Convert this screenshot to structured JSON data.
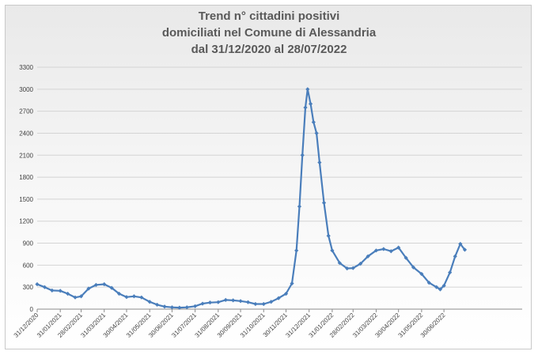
{
  "chart_data": {
    "type": "line",
    "title_lines": [
      "Trend n° cittadini positivi",
      "domiciliati nel Comune di Alessandria",
      "dal 31/12/2020 al 28/07/2022"
    ],
    "xlabel": "",
    "ylabel": "",
    "ylim": [
      0,
      3300
    ],
    "y_ticks": [
      0,
      300,
      600,
      900,
      1200,
      1500,
      1800,
      2100,
      2400,
      2700,
      3000,
      3300
    ],
    "x_tick_labels": [
      "31/12/2020",
      "31/01/2021",
      "28/02/2021",
      "31/03/2021",
      "30/04/2021",
      "31/05/2021",
      "30/06/2021",
      "31/07/2021",
      "31/08/2021",
      "30/09/2021",
      "31/10/2021",
      "30/11/2021",
      "31/12/2021",
      "31/01/2022",
      "28/02/2022",
      "31/03/2022",
      "30/04/2022",
      "31/05/2022",
      "30/06/2022"
    ],
    "grid": "horizontal",
    "legend": "none",
    "line_color": "#4a7ebb",
    "x_unit": "date (dd/mm/yyyy)",
    "series": [
      {
        "points": [
          [
            "31/12/2020",
            340
          ],
          [
            "10/01/2021",
            300
          ],
          [
            "20/01/2021",
            255
          ],
          [
            "31/01/2021",
            250
          ],
          [
            "10/02/2021",
            210
          ],
          [
            "20/02/2021",
            160
          ],
          [
            "28/02/2021",
            175
          ],
          [
            "10/03/2021",
            280
          ],
          [
            "20/03/2021",
            330
          ],
          [
            "31/03/2021",
            340
          ],
          [
            "10/04/2021",
            290
          ],
          [
            "20/04/2021",
            210
          ],
          [
            "30/04/2021",
            165
          ],
          [
            "10/05/2021",
            175
          ],
          [
            "20/05/2021",
            160
          ],
          [
            "31/05/2021",
            100
          ],
          [
            "10/06/2021",
            60
          ],
          [
            "20/06/2021",
            35
          ],
          [
            "30/06/2021",
            25
          ],
          [
            "10/07/2021",
            20
          ],
          [
            "20/07/2021",
            25
          ],
          [
            "31/07/2021",
            40
          ],
          [
            "10/08/2021",
            75
          ],
          [
            "20/08/2021",
            90
          ],
          [
            "31/08/2021",
            95
          ],
          [
            "10/09/2021",
            125
          ],
          [
            "20/09/2021",
            120
          ],
          [
            "30/09/2021",
            110
          ],
          [
            "10/10/2021",
            95
          ],
          [
            "20/10/2021",
            70
          ],
          [
            "31/10/2021",
            70
          ],
          [
            "10/11/2021",
            100
          ],
          [
            "20/11/2021",
            150
          ],
          [
            "30/11/2021",
            210
          ],
          [
            "08/12/2021",
            350
          ],
          [
            "14/12/2021",
            800
          ],
          [
            "18/12/2021",
            1400
          ],
          [
            "22/12/2021",
            2100
          ],
          [
            "26/12/2021",
            2750
          ],
          [
            "29/12/2021",
            3000
          ],
          [
            "02/01/2022",
            2800
          ],
          [
            "06/01/2022",
            2550
          ],
          [
            "10/01/2022",
            2400
          ],
          [
            "14/01/2022",
            2000
          ],
          [
            "20/01/2022",
            1450
          ],
          [
            "26/01/2022",
            1000
          ],
          [
            "31/01/2022",
            800
          ],
          [
            "10/02/2022",
            630
          ],
          [
            "20/02/2022",
            555
          ],
          [
            "28/02/2022",
            560
          ],
          [
            "10/03/2022",
            620
          ],
          [
            "20/03/2022",
            720
          ],
          [
            "31/03/2022",
            800
          ],
          [
            "10/04/2022",
            820
          ],
          [
            "20/04/2022",
            790
          ],
          [
            "30/04/2022",
            840
          ],
          [
            "10/05/2022",
            700
          ],
          [
            "20/05/2022",
            570
          ],
          [
            "31/05/2022",
            480
          ],
          [
            "10/06/2022",
            360
          ],
          [
            "20/06/2022",
            300
          ],
          [
            "25/06/2022",
            270
          ],
          [
            "30/06/2022",
            320
          ],
          [
            "08/07/2022",
            500
          ],
          [
            "15/07/2022",
            720
          ],
          [
            "22/07/2022",
            890
          ],
          [
            "28/07/2022",
            810
          ]
        ]
      }
    ]
  }
}
